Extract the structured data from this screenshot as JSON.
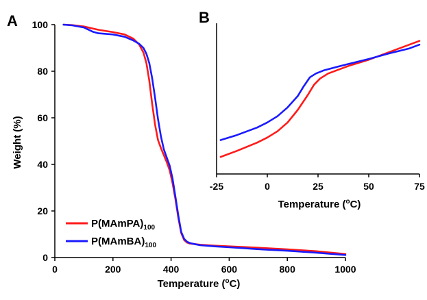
{
  "chart_data": [
    {
      "panel": "A",
      "type": "line",
      "xlabel": "Temperature (°C)",
      "xlabel_parts": {
        "pre": "Temperature (",
        "sup": "o",
        "post": "C)"
      },
      "ylabel": "Weight (%)",
      "xlim": [
        0,
        1000
      ],
      "ylim": [
        0,
        100
      ],
      "xticks": [
        0,
        200,
        400,
        600,
        800,
        1000
      ],
      "yticks": [
        0,
        20,
        40,
        60,
        80,
        100
      ],
      "grid": false,
      "legend_position": "bottom-left",
      "series": [
        {
          "name": "P(MAmPA)100",
          "name_parts": {
            "base": "P(MAmPA)",
            "sub": "100"
          },
          "color": "#ff1a1a",
          "x": [
            30,
            60,
            100,
            150,
            200,
            240,
            270,
            290,
            305,
            315,
            325,
            335,
            345,
            355,
            365,
            375,
            385,
            395,
            405,
            415,
            425,
            435,
            445,
            455,
            465,
            480,
            500,
            550,
            600,
            700,
            800,
            900,
            1000
          ],
          "y": [
            100,
            99.8,
            99.2,
            97.8,
            96.8,
            95.8,
            94.0,
            91.5,
            88.0,
            83.5,
            76.0,
            66.0,
            57.0,
            50.5,
            47.0,
            44.0,
            41.0,
            37.5,
            32.0,
            25.0,
            17.0,
            10.5,
            7.5,
            6.4,
            6.0,
            5.8,
            5.5,
            5.1,
            4.8,
            4.2,
            3.5,
            2.7,
            1.5
          ]
        },
        {
          "name": "P(MAmBA)100",
          "name_parts": {
            "base": "P(MAmBA)",
            "sub": "100"
          },
          "color": "#1a1aff",
          "x": [
            30,
            60,
            100,
            130,
            150,
            200,
            240,
            270,
            290,
            305,
            315,
            325,
            335,
            345,
            355,
            365,
            375,
            385,
            395,
            405,
            415,
            425,
            435,
            445,
            455,
            465,
            480,
            500,
            550,
            600,
            700,
            800,
            900,
            1000
          ],
          "y": [
            100,
            99.7,
            98.8,
            97.0,
            96.3,
            95.8,
            94.8,
            93.2,
            91.8,
            90.0,
            87.5,
            83.5,
            77.0,
            68.5,
            59.5,
            52.0,
            46.5,
            43.0,
            39.5,
            34.0,
            26.0,
            18.0,
            11.0,
            8.0,
            6.8,
            6.2,
            5.8,
            5.3,
            4.8,
            4.4,
            3.6,
            2.9,
            2.1,
            1.1
          ]
        }
      ]
    },
    {
      "panel": "B",
      "type": "line",
      "xlabel": "Temperature (°C)",
      "xlabel_parts": {
        "pre": "Temperature (",
        "sup": "o",
        "post": "C)"
      },
      "ylabel": "",
      "xlim": [
        -25,
        75
      ],
      "ylim": [
        40,
        100
      ],
      "xticks": [
        -25,
        0,
        25,
        50,
        75
      ],
      "yticks": [],
      "grid": false,
      "series": [
        {
          "name": "P(MAmPA)100",
          "color": "#ff1a1a",
          "x": [
            -23,
            -15,
            -5,
            0,
            5,
            10,
            15,
            20,
            23,
            26,
            30,
            35,
            40,
            50,
            60,
            70,
            75
          ],
          "y": [
            46.8,
            49.2,
            52.5,
            54.5,
            57.0,
            60.5,
            65.5,
            71.5,
            75.5,
            78.0,
            80.0,
            81.5,
            83.0,
            85.5,
            88.5,
            91.5,
            93.0
          ]
        },
        {
          "name": "P(MAmBA)100",
          "color": "#1a1aff",
          "x": [
            -23,
            -15,
            -5,
            0,
            5,
            10,
            15,
            18,
            21,
            24,
            28,
            35,
            40,
            50,
            60,
            70,
            75
          ],
          "y": [
            53.5,
            55.5,
            58.5,
            60.5,
            63.0,
            66.5,
            71.0,
            75.0,
            78.5,
            80.0,
            81.3,
            82.8,
            83.8,
            85.8,
            88.0,
            90.0,
            91.5
          ]
        }
      ]
    }
  ]
}
